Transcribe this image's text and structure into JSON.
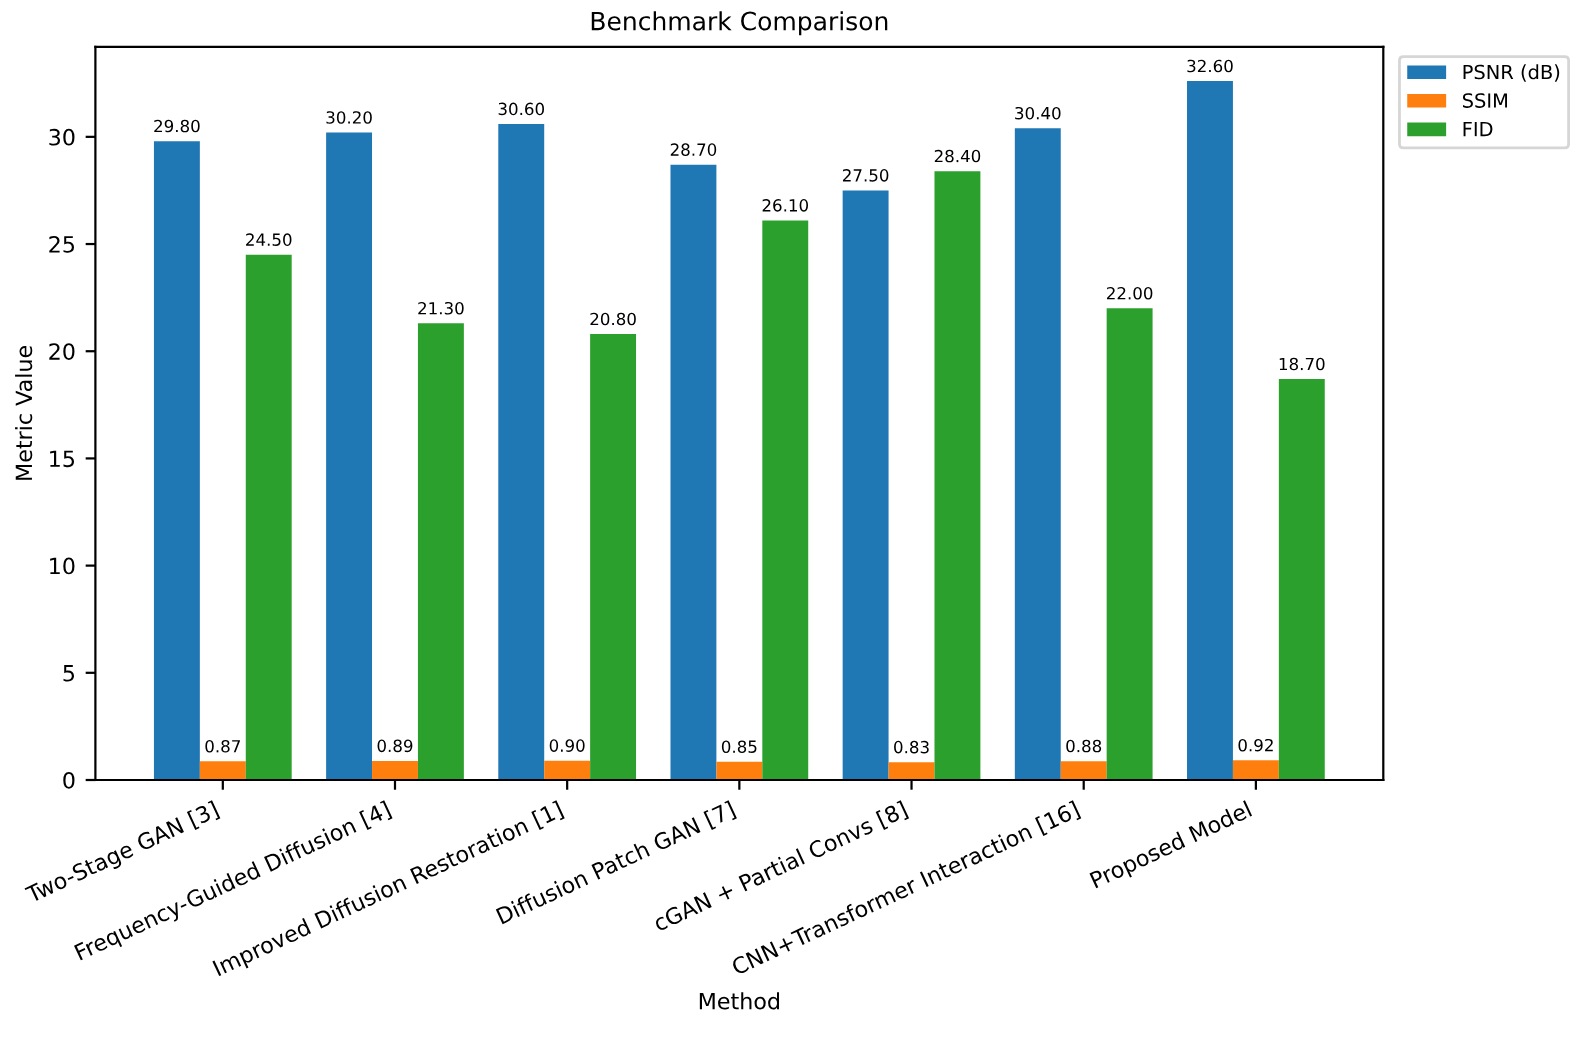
{
  "chart_data": {
    "type": "bar",
    "title": "Benchmark Comparison",
    "xlabel": "Method",
    "ylabel": "Metric Value",
    "categories": [
      "Two-Stage GAN [3]",
      "Frequency-Guided Diffusion [4]",
      "Improved Diffusion Restoration [1]",
      "Diffusion Patch GAN [7]",
      "cGAN + Partial Convs [8]",
      "CNN+Transformer Interaction [16]",
      "Proposed Model"
    ],
    "series": [
      {
        "name": "PSNR (dB)",
        "color": "#1f77b4",
        "values": [
          29.8,
          30.2,
          30.6,
          28.7,
          27.5,
          30.4,
          32.6
        ],
        "value_labels": [
          "29.80",
          "30.20",
          "30.60",
          "28.70",
          "27.50",
          "30.40",
          "32.60"
        ]
      },
      {
        "name": "SSIM",
        "color": "#ff7f0e",
        "values": [
          0.87,
          0.89,
          0.9,
          0.85,
          0.83,
          0.88,
          0.92
        ],
        "value_labels": [
          "0.87",
          "0.89",
          "0.90",
          "0.85",
          "0.83",
          "0.88",
          "0.92"
        ]
      },
      {
        "name": "FID",
        "color": "#2ca02c",
        "values": [
          24.5,
          21.3,
          20.8,
          26.1,
          28.4,
          22.0,
          18.7
        ],
        "value_labels": [
          "24.50",
          "21.30",
          "20.80",
          "26.10",
          "28.40",
          "22.00",
          "18.70"
        ]
      }
    ],
    "ylim": [
      0,
      34.2
    ],
    "yticks": [
      0,
      5,
      10,
      15,
      20,
      25,
      30
    ],
    "grid": false,
    "legend": "top right"
  }
}
